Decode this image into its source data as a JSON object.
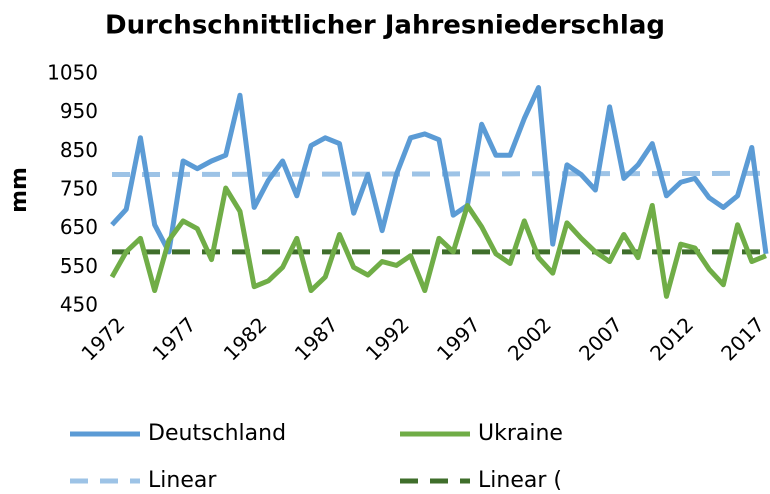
{
  "chart_data": {
    "type": "line",
    "title": "Durchschnittlicher Jahresniederschlag",
    "y_label": "mm",
    "x": [
      1972,
      1973,
      1974,
      1975,
      1976,
      1977,
      1978,
      1979,
      1980,
      1981,
      1982,
      1983,
      1984,
      1985,
      1986,
      1987,
      1988,
      1989,
      1990,
      1991,
      1992,
      1993,
      1994,
      1995,
      1996,
      1997,
      1998,
      1999,
      2000,
      2001,
      2002,
      2003,
      2004,
      2005,
      2006,
      2007,
      2008,
      2009,
      2010,
      2011,
      2012,
      2013,
      2014,
      2015,
      2016,
      2017,
      2018
    ],
    "xlim": [
      1972,
      2018
    ],
    "xticks": [
      1972,
      1977,
      1982,
      1987,
      1992,
      1997,
      2002,
      2007,
      2012,
      2017
    ],
    "ylim": [
      450,
      1050
    ],
    "yticks": [
      450,
      550,
      650,
      750,
      850,
      950,
      1050
    ],
    "grid": false,
    "series": [
      {
        "name": "Deutschland",
        "color": "#5b9bd5",
        "values": [
          660,
          700,
          885,
          660,
          590,
          825,
          805,
          825,
          840,
          995,
          705,
          775,
          825,
          735,
          865,
          885,
          870,
          690,
          790,
          645,
          790,
          885,
          895,
          880,
          685,
          710,
          920,
          840,
          840,
          935,
          1015,
          610,
          815,
          790,
          750,
          965,
          780,
          815,
          870,
          735,
          770,
          780,
          730,
          705,
          735,
          860,
          585
        ]
      },
      {
        "name": "Ukraine",
        "color": "#70ad47",
        "values": [
          525,
          590,
          625,
          490,
          620,
          670,
          650,
          570,
          755,
          695,
          500,
          515,
          550,
          625,
          490,
          525,
          635,
          550,
          530,
          565,
          555,
          580,
          490,
          625,
          590,
          710,
          655,
          585,
          560,
          670,
          575,
          535,
          665,
          625,
          590,
          565,
          635,
          575,
          710,
          475,
          610,
          600,
          545,
          505,
          660,
          565,
          580
        ]
      }
    ],
    "trendlines": [
      {
        "name": "Linear",
        "color": "#9dc3e6",
        "x": [
          1972,
          2018
        ],
        "values": [
          790,
          793
        ]
      },
      {
        "name": "Linear (",
        "color": "#3f6e2b",
        "x": [
          1972,
          2018
        ],
        "values": [
          590,
          590
        ]
      }
    ]
  }
}
